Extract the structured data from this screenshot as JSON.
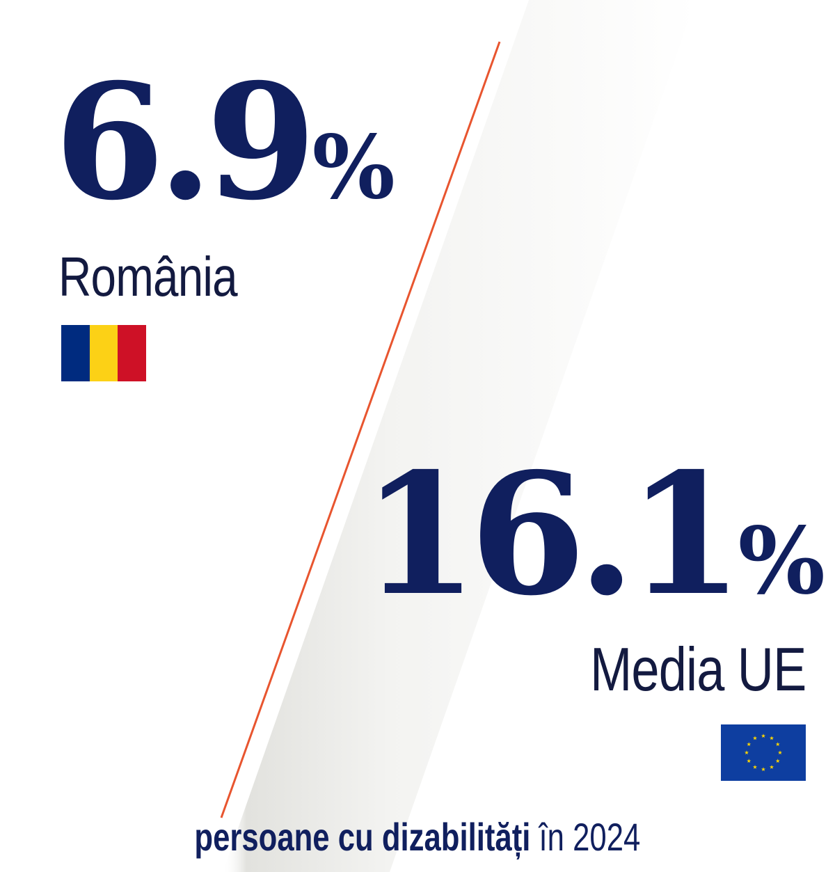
{
  "romania": {
    "value": "6.9",
    "unit": "%",
    "label": "România",
    "flag_colors": [
      "#002b7f",
      "#fcd116",
      "#ce1126"
    ]
  },
  "eu": {
    "value": "16.1",
    "unit": "%",
    "label": "Media UE",
    "flag_background": "#0e3ea0",
    "star_color": "#ffd700"
  },
  "caption": {
    "bold": "persoane cu dizabilități",
    "normal": "în 2024"
  },
  "colors": {
    "number": "#101f5e",
    "divider": "#e8552f",
    "shadow": "#e9e9e6"
  }
}
